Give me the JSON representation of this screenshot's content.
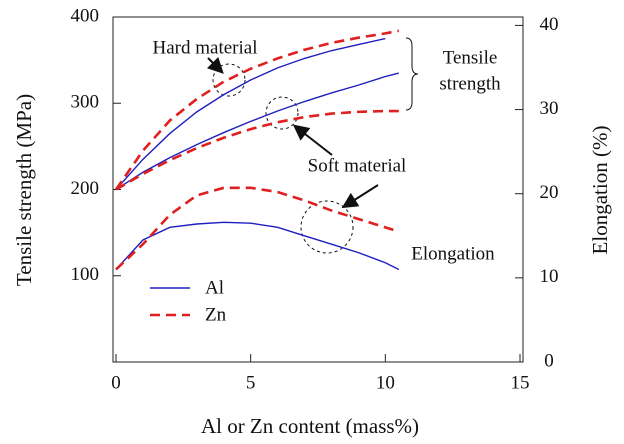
{
  "chart_data": {
    "type": "line",
    "x_label": "Al or Zn content (mass%)",
    "y_label": "Tensile strength (MPa)",
    "y2_label": "Elongation (%)",
    "x": [
      0,
      1,
      2,
      3,
      4,
      5,
      6,
      7,
      8,
      9,
      10,
      10.5
    ],
    "xlim": [
      0,
      15
    ],
    "xticks": [
      0,
      5,
      10,
      15
    ],
    "ylim": [
      0,
      400
    ],
    "yticks": [
      100,
      200,
      300,
      400
    ],
    "y2lim": [
      0,
      41
    ],
    "y2ticks": [
      0,
      10,
      20,
      30,
      40
    ],
    "series": [
      {
        "name": "Al",
        "color": "#1f1fbf",
        "dashed": false,
        "values": [
          200,
          235,
          265,
          290,
          310,
          327,
          341,
          352,
          361,
          368,
          375,
          null
        ]
      },
      {
        "name": "Zn",
        "color": "#e01f1f",
        "dashed": true,
        "values": [
          200,
          245,
          280,
          305,
          325,
          340,
          352,
          362,
          370,
          376,
          381,
          384
        ]
      },
      {
        "name": "Al",
        "color": "#1f1fbf",
        "dashed": false,
        "values": [
          200,
          220,
          237,
          252,
          266,
          279,
          291,
          302,
          312,
          321,
          331,
          335
        ]
      },
      {
        "name": "Zn",
        "color": "#e01f1f",
        "dashed": true,
        "values": [
          200,
          218,
          234,
          248,
          260,
          270,
          278,
          284,
          288,
          290,
          291,
          291
        ]
      },
      {
        "name": "Al",
        "color": "#1f1fbf",
        "dashed": false,
        "axis": "y2",
        "values": [
          11,
          14.5,
          16,
          16.4,
          16.6,
          16.5,
          16,
          15,
          14,
          13,
          11.8,
          11
        ]
      },
      {
        "name": "Zn",
        "color": "#e01f1f",
        "dashed": true,
        "axis": "y2",
        "values": [
          11,
          14,
          17.5,
          19.8,
          20.7,
          20.7,
          20.2,
          19.2,
          18,
          17,
          16,
          15.5
        ]
      }
    ],
    "annotations": [
      "Hard material",
      "Tensile",
      "strength",
      "Soft material",
      "Elongation"
    ]
  }
}
